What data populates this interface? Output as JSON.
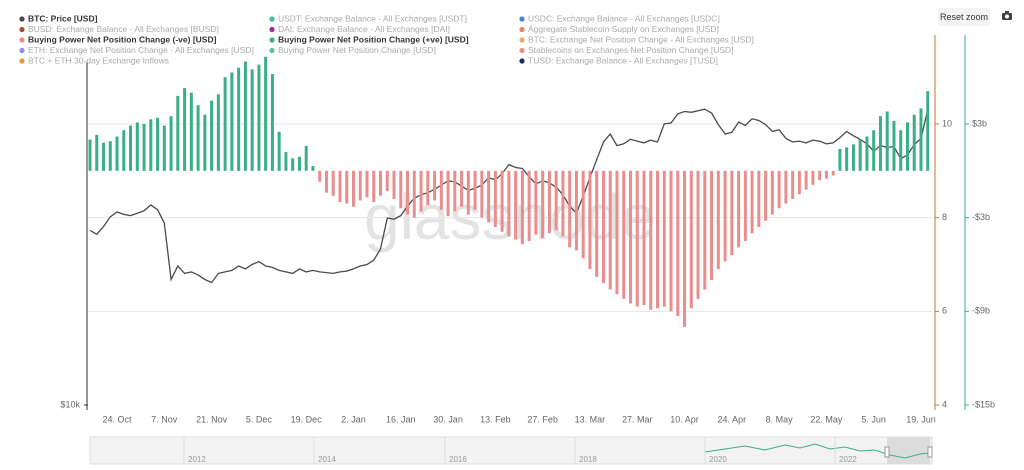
{
  "chart_data": {
    "type": "combo",
    "reset_zoom": "Reset zoom",
    "watermark": "glassnode",
    "categories": [
      null,
      null,
      null,
      null,
      "24. Oct",
      null,
      null,
      null,
      null,
      null,
      null,
      "7. Nov",
      null,
      null,
      null,
      null,
      null,
      null,
      "21. Nov",
      null,
      null,
      null,
      null,
      null,
      null,
      "5. Dec",
      null,
      null,
      null,
      null,
      null,
      null,
      "19. Dec",
      null,
      null,
      null,
      null,
      null,
      null,
      "2. Jan",
      null,
      null,
      null,
      null,
      null,
      null,
      "16. Jan",
      null,
      null,
      null,
      null,
      null,
      null,
      "30. Jan",
      null,
      null,
      null,
      null,
      null,
      null,
      "13. Feb",
      null,
      null,
      null,
      null,
      null,
      null,
      "27. Feb",
      null,
      null,
      null,
      null,
      null,
      null,
      "13. Mar",
      null,
      null,
      null,
      null,
      null,
      null,
      "27. Mar",
      null,
      null,
      null,
      null,
      null,
      null,
      "10. Apr",
      null,
      null,
      null,
      null,
      null,
      null,
      "24. Apr",
      null,
      null,
      null,
      null,
      null,
      null,
      "8. May",
      null,
      null,
      null,
      null,
      null,
      null,
      "22. May",
      null,
      null,
      null,
      null,
      null,
      null,
      "5. Jun",
      null,
      null,
      null,
      null,
      null,
      null,
      "19. Jun",
      null
    ],
    "log": true,
    "ylim": [
      10000,
      43000
    ],
    "yticks": [
      {
        "value": 10000,
        "label": "$10k"
      }
    ],
    "y2lim": [
      -15,
      8.7
    ],
    "y2ticks": [
      {
        "value": 3,
        "label": "$3b"
      },
      {
        "value": -3,
        "label": "-$3b"
      },
      {
        "value": -9,
        "label": "-$9b"
      },
      {
        "value": -15,
        "label": "-$15b"
      }
    ],
    "y3lim": [
      4,
      11.9
    ],
    "y3ticks": [
      4,
      6,
      8,
      10
    ],
    "y3color": "#c8763a",
    "y2color": "#3aae89",
    "grid": true,
    "series": [
      {
        "name": "BTC: Price [USD]",
        "color": "#4a4a4a",
        "visible": true,
        "type": "line",
        "axis": "y",
        "values": [
          19900,
          19600,
          20200,
          21000,
          21400,
          21200,
          21100,
          21300,
          21500,
          22000,
          21600,
          20500,
          16400,
          17300,
          16800,
          16900,
          16700,
          16400,
          16200,
          16800,
          16900,
          17000,
          17300,
          17100,
          17400,
          17600,
          17300,
          17200,
          17000,
          16900,
          16800,
          17100,
          16900,
          17000,
          16900,
          16850,
          16800,
          16900,
          16950,
          17100,
          17300,
          17400,
          17700,
          18500,
          20900,
          20800,
          21100,
          21900,
          22600,
          22900,
          23100,
          23400,
          23800,
          24200,
          24100,
          23700,
          23300,
          23500,
          23800,
          24500,
          24300,
          24900,
          25800,
          25500,
          25400,
          24600,
          23900,
          24200,
          24000,
          23600,
          22900,
          21900,
          21300,
          22800,
          24500,
          26300,
          28200,
          29100,
          27800,
          28000,
          28500,
          28300,
          28100,
          28400,
          28200,
          30300,
          30400,
          31500,
          31800,
          31700,
          31900,
          32100,
          31600,
          30200,
          29100,
          29300,
          30500,
          30100,
          30900,
          30700,
          30200,
          29400,
          29600,
          28600,
          28200,
          28300,
          28100,
          28400,
          28300,
          28000,
          28100,
          28700,
          29400,
          28900,
          28500,
          28000,
          27200,
          27800,
          27600,
          27700,
          26400,
          26800,
          27900,
          28600,
          32000
        ]
      },
      {
        "name": "BUSD: Exchange Balance - All Exchanges [BUSD]",
        "color": "#a0522d",
        "visible": false
      },
      {
        "name": "Buying Power Net Position Change (-ve) [USD]",
        "color": "#e98e8e",
        "visible": true,
        "type": "bar",
        "axis": "y2",
        "values": [
          null,
          null,
          null,
          null,
          null,
          null,
          null,
          null,
          null,
          null,
          null,
          null,
          null,
          null,
          null,
          null,
          null,
          null,
          null,
          null,
          null,
          null,
          null,
          null,
          null,
          null,
          null,
          null,
          null,
          null,
          null,
          null,
          null,
          null,
          -0.7,
          -1.4,
          -1.6,
          -2.0,
          -2.1,
          -2.3,
          -1.9,
          -1.7,
          -2.0,
          -1.6,
          -1.3,
          -1.8,
          -2.4,
          -2.8,
          -3.0,
          -2.6,
          -2.2,
          -1.9,
          -2.5,
          -2.9,
          -2.6,
          -2.3,
          -2.8,
          -2.5,
          -3.0,
          -3.3,
          -3.6,
          -3.9,
          -4.2,
          -4.4,
          -4.7,
          -4.5,
          -4.1,
          -4.3,
          -4.0,
          -3.8,
          -4.2,
          -4.9,
          -5.1,
          -5.6,
          -6.3,
          -6.8,
          -7.2,
          -7.6,
          -7.9,
          -8.2,
          -8.5,
          -8.7,
          -8.6,
          -8.9,
          -8.8,
          -8.7,
          -9.0,
          -9.3,
          -10.0,
          -8.8,
          -8.2,
          -7.6,
          -7.0,
          -6.3,
          -5.8,
          -5.4,
          -4.9,
          -4.5,
          -4.0,
          -3.6,
          -3.2,
          -2.8,
          -2.4,
          -2.1,
          -1.8,
          -1.5,
          -1.2,
          -0.9,
          -0.6,
          -0.5,
          -0.3,
          null,
          null,
          null,
          null,
          null,
          null,
          null,
          null,
          null,
          null,
          null,
          null,
          null,
          null
        ]
      },
      {
        "name": "ETH: Exchange Net Position Change - All Exchanges [USD]",
        "color": "#8f8fe0",
        "visible": false
      },
      {
        "name": "BTC + ETH 30-day Exchange Inflows",
        "color": "#f0913a",
        "visible": false
      },
      {
        "name": "USDT: Exchange Balance - All Exchanges [USDT]",
        "color": "#3fbf8f",
        "visible": false
      },
      {
        "name": "DAI: Exchange Balance - All Exchanges [DAI]",
        "color": "#9b2a9b",
        "visible": false
      },
      {
        "name": "Buying Power Net Position Change (+ve) [USD]",
        "color": "#3aae89",
        "visible": true,
        "type": "bar",
        "axis": "y2",
        "values": [
          2.0,
          2.3,
          1.8,
          1.9,
          2.2,
          2.6,
          2.9,
          3.1,
          3.0,
          3.3,
          3.4,
          2.9,
          3.5,
          4.8,
          5.3,
          5.0,
          4.2,
          3.6,
          4.5,
          4.9,
          6.0,
          6.3,
          6.6,
          7.0,
          6.5,
          6.8,
          7.3,
          6.2,
          2.5,
          1.2,
          0.8,
          0.9,
          1.6,
          0.3,
          null,
          null,
          null,
          null,
          null,
          null,
          null,
          null,
          null,
          null,
          null,
          null,
          null,
          null,
          null,
          null,
          null,
          null,
          null,
          null,
          null,
          null,
          null,
          null,
          null,
          null,
          null,
          null,
          null,
          null,
          null,
          null,
          null,
          null,
          null,
          null,
          null,
          null,
          null,
          null,
          null,
          null,
          null,
          null,
          null,
          null,
          null,
          null,
          null,
          null,
          null,
          null,
          null,
          null,
          null,
          null,
          null,
          null,
          null,
          null,
          null,
          null,
          null,
          null,
          null,
          null,
          null,
          null,
          null,
          null,
          null,
          null,
          null,
          null,
          null,
          null,
          null,
          1.4,
          1.5,
          1.7,
          2.0,
          2.2,
          2.6,
          3.5,
          3.8,
          3.2,
          2.6,
          3.1,
          3.6,
          4.0,
          5.1
        ]
      },
      {
        "name": "Buying Power Net Position Change [USD]",
        "color": "#5fbf9a",
        "visible": false
      },
      {
        "name": "USDC: Exchange Balance - All Exchanges [USDC]",
        "color": "#4a7fd6",
        "visible": false
      },
      {
        "name": "Aggregate Stablecoin Supply on Exchanges [USD]",
        "color": "#e8826e",
        "visible": false
      },
      {
        "name": "BTC: Exchange Net Position Change - All Exchanges [USD]",
        "color": "#f2a66a",
        "visible": false
      },
      {
        "name": "Stablecoins on Exchanges Net Position Change [USD]",
        "color": "#ef8a8a",
        "visible": false
      },
      {
        "name": "TUSD: Exchange Balance - All Exchanges [TUSD]",
        "color": "#1f2a66",
        "visible": false
      }
    ],
    "navigator": {
      "labels": [
        "2012",
        "2014",
        "2016",
        "2018",
        "2020",
        "2022"
      ]
    }
  }
}
